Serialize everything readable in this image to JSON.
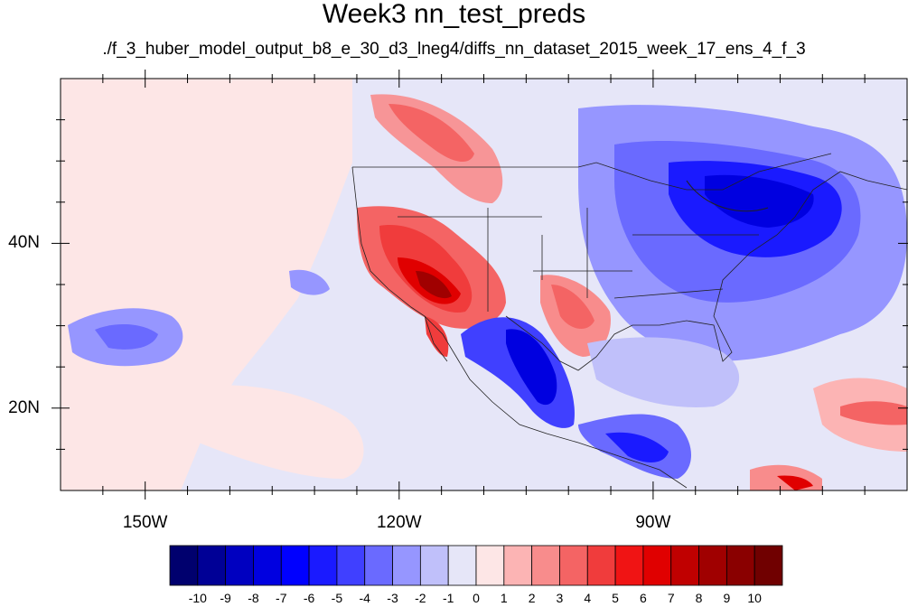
{
  "title": "Week3 nn_test_preds",
  "subtitle": "./f_3_huber_model_output_b8_e_30_d3_lneg4/diffs_nn_dataset_2015_week_17_ens_4_f_3",
  "map": {
    "lon_range": [
      -160,
      -60
    ],
    "lat_range": [
      10,
      60
    ],
    "lon_ticks": [
      {
        "value": -150,
        "label": "150W"
      },
      {
        "value": -120,
        "label": "120W"
      },
      {
        "value": -90,
        "label": "90W"
      }
    ],
    "lat_ticks": [
      {
        "value": 40,
        "label": "40N"
      },
      {
        "value": 20,
        "label": "20N"
      }
    ],
    "background_color": "#e6e6f8",
    "regions": [
      {
        "name": "eastern-us-cold-anomaly",
        "lon": -84,
        "lat": 42,
        "value": -5
      },
      {
        "name": "eastern-canada-cold-anomaly",
        "lon": -78,
        "lat": 50,
        "value": -5
      },
      {
        "name": "great-lakes-cold-anomaly",
        "lon": -87,
        "lat": 44,
        "value": -6
      },
      {
        "name": "southwest-us-warm-anomaly",
        "lon": -115,
        "lat": 34,
        "value": 8
      },
      {
        "name": "nevada-warm-anomaly",
        "lon": -118,
        "lat": 38,
        "value": 6
      },
      {
        "name": "texas-warm-anomaly",
        "lon": -101,
        "lat": 31,
        "value": 4
      },
      {
        "name": "western-canada-warm-anomaly",
        "lon": -125,
        "lat": 55,
        "value": 3
      },
      {
        "name": "mexico-cold-anomaly",
        "lon": -104,
        "lat": 25,
        "value": -7
      },
      {
        "name": "central-america-cold-anomaly",
        "lon": -92,
        "lat": 16,
        "value": -5
      },
      {
        "name": "north-pacific-cold-anomaly",
        "lon": -149,
        "lat": 28,
        "value": -3
      },
      {
        "name": "caribbean-warm-anomaly",
        "lon": -64,
        "lat": 19,
        "value": 3
      },
      {
        "name": "venezuela-warm-anomaly",
        "lon": -72,
        "lat": 12,
        "value": 7
      }
    ]
  },
  "colorbar": {
    "labels": [
      "-10",
      "-9",
      "-8",
      "-7",
      "-6",
      "-5",
      "-4",
      "-3",
      "-2",
      "-1",
      "0",
      "1",
      "2",
      "3",
      "4",
      "5",
      "6",
      "7",
      "8",
      "9",
      "10"
    ],
    "colors": [
      "#00006e",
      "#000096",
      "#0000c0",
      "#0000e0",
      "#0000ff",
      "#1a1aff",
      "#4040ff",
      "#6a6aff",
      "#9696ff",
      "#c0c0fa",
      "#e6e6f8",
      "#fde6e6",
      "#fcb4b4",
      "#f88c8c",
      "#f46464",
      "#f03c3c",
      "#f01414",
      "#e00000",
      "#c00000",
      "#a00000",
      "#8a0000",
      "#700000"
    ]
  }
}
